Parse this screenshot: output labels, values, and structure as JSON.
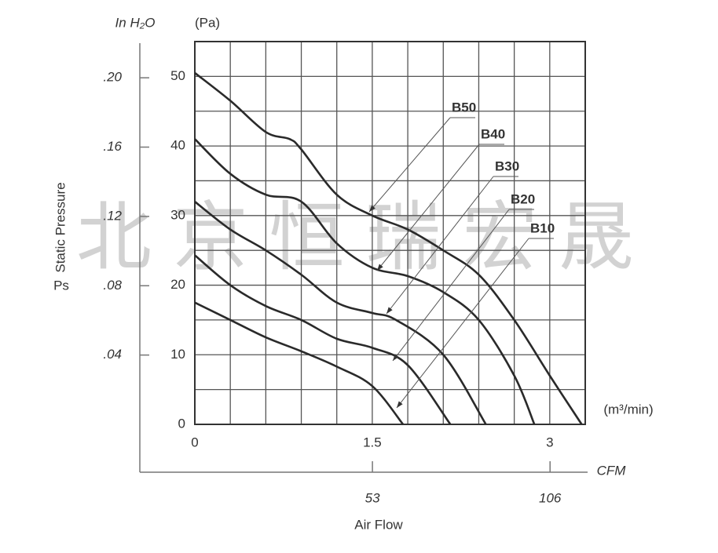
{
  "chart_data": {
    "type": "line",
    "y_unit_label": "(Pa)",
    "y2_unit_label": "In H₂O",
    "y_axis_label": "Static Pressure",
    "y_axis_symbol": "Ps",
    "x_unit_label": "(m³/min)",
    "x2_unit_label": "CFM",
    "x_axis_label": "Air Flow",
    "watermark": "北京恒瑞宏晟",
    "xlim": [
      0,
      3.3
    ],
    "xticks": [
      0,
      1.5,
      3
    ],
    "x2lim": [
      0,
      116.5
    ],
    "x2ticks": [
      53,
      106
    ],
    "ylim": [
      0,
      55
    ],
    "yticks": [
      0,
      10,
      20,
      30,
      40,
      50
    ],
    "y2lim": [
      0,
      0.2209
    ],
    "y2ticks": [
      {
        "value": 0.04,
        "label": ".04"
      },
      {
        "value": 0.08,
        "label": ".08"
      },
      {
        "value": 0.12,
        "label": ".12"
      },
      {
        "value": 0.16,
        "label": ".16"
      },
      {
        "value": 0.2,
        "label": ".20"
      }
    ],
    "grid": {
      "x_step": 0.3,
      "y_step": 5
    },
    "series": [
      {
        "name": "B50",
        "color": "#2a2a2a",
        "x": [
          0,
          0.3,
          0.6,
          0.8,
          0.9,
          1.2,
          1.5,
          1.8,
          2.1,
          2.4,
          2.7,
          3.0,
          3.27
        ],
        "values": [
          50.5,
          46.5,
          42,
          41,
          39.5,
          33,
          30,
          28,
          25,
          21.5,
          15,
          7,
          0
        ]
      },
      {
        "name": "B40",
        "color": "#2a2a2a",
        "x": [
          0,
          0.3,
          0.6,
          0.9,
          1.2,
          1.5,
          1.8,
          2.1,
          2.4,
          2.7,
          2.87
        ],
        "values": [
          41,
          36,
          33,
          32,
          26,
          22.5,
          21.3,
          19,
          15,
          7,
          0
        ]
      },
      {
        "name": "B30",
        "color": "#2a2a2a",
        "x": [
          0,
          0.3,
          0.6,
          0.9,
          1.2,
          1.5,
          1.7,
          2.1,
          2.46
        ],
        "values": [
          32,
          28,
          25,
          21.5,
          17.5,
          16,
          15,
          10,
          0
        ]
      },
      {
        "name": "B20",
        "color": "#2a2a2a",
        "x": [
          0,
          0.3,
          0.6,
          0.9,
          1.2,
          1.5,
          1.8,
          2.16
        ],
        "values": [
          24.3,
          20,
          17,
          15,
          12.3,
          11,
          8.5,
          0
        ]
      },
      {
        "name": "B10",
        "color": "#2a2a2a",
        "x": [
          0,
          0.3,
          0.6,
          0.9,
          1.2,
          1.5,
          1.76
        ],
        "values": [
          17.5,
          15,
          12.5,
          10.5,
          8.3,
          5.5,
          0
        ]
      }
    ]
  }
}
